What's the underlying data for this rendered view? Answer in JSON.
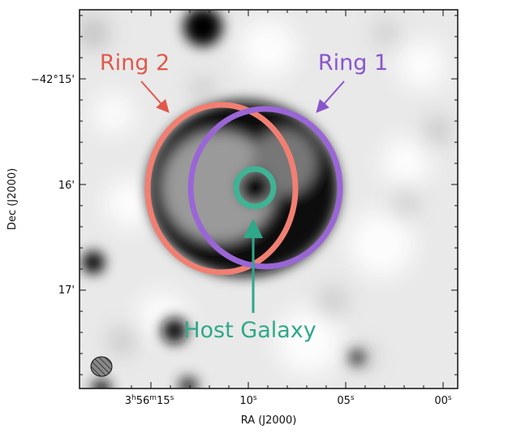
{
  "figure": {
    "x_axis": {
      "label": "RA (J2000)",
      "ticks": [
        {
          "h": "3",
          "m": "56",
          "s": "15",
          "full": true
        },
        {
          "s": "10"
        },
        {
          "s": "05"
        },
        {
          "s": "00"
        }
      ]
    },
    "y_axis": {
      "label": "Dec (J2000)",
      "ticks": [
        "−42°15'",
        "16'",
        "17'"
      ]
    },
    "annotations": {
      "ring2": {
        "label": "Ring 2",
        "color": "#e0584c",
        "ring_color": "#f07f72"
      },
      "ring1": {
        "label": "Ring 1",
        "color": "#8a55cc",
        "ring_color": "#9a66d6"
      },
      "host": {
        "label": "Host Galaxy",
        "color": "#2ea889",
        "ring_color": "#3fb394"
      }
    },
    "colormap": "grayscale (inverted)",
    "beam_icon": "hatched-ellipse"
  }
}
